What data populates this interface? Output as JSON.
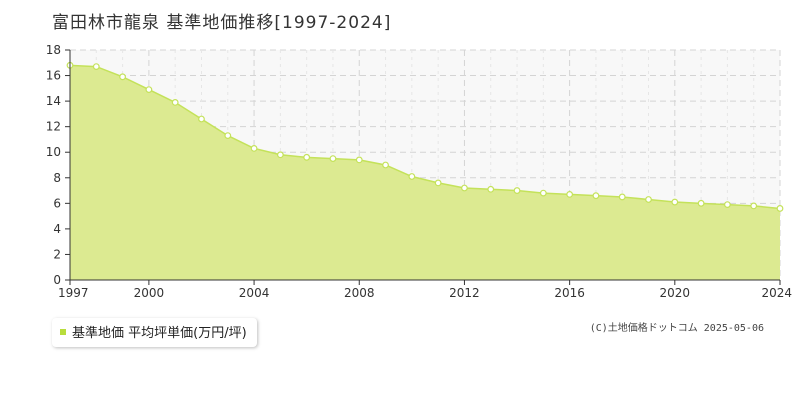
{
  "title": "富田林市龍泉 基準地価推移[1997-2024]",
  "legend": {
    "label": "基準地価 平均坪単価(万円/坪)"
  },
  "copyright": "(C)土地価格ドットコム 2025-05-06",
  "colors": {
    "area_fill": "#dcea91",
    "line": "#c4e25a",
    "legend_swatch": "#b8dd3c",
    "grid": "#d4d4d4",
    "plot_bg": "#f8f8f8"
  },
  "chart_data": {
    "type": "area",
    "title": "富田林市龍泉 基準地価推移[1997-2024]",
    "x": [
      1997,
      1998,
      1999,
      2000,
      2001,
      2002,
      2003,
      2004,
      2005,
      2006,
      2007,
      2008,
      2009,
      2010,
      2011,
      2012,
      2013,
      2014,
      2015,
      2016,
      2017,
      2018,
      2019,
      2020,
      2021,
      2022,
      2023,
      2024
    ],
    "series": [
      {
        "name": "基準地価 平均坪単価(万円/坪)",
        "values": [
          16.8,
          16.7,
          15.9,
          14.9,
          13.9,
          12.6,
          11.3,
          10.3,
          9.8,
          9.6,
          9.5,
          9.4,
          9.0,
          8.1,
          7.6,
          7.2,
          7.1,
          7.0,
          6.8,
          6.7,
          6.6,
          6.5,
          6.3,
          6.1,
          6.0,
          5.9,
          5.8,
          5.6
        ]
      }
    ],
    "xlim": [
      1997,
      2024
    ],
    "ylim": [
      0,
      18
    ],
    "x_ticks": [
      1997,
      2000,
      2004,
      2008,
      2012,
      2016,
      2020,
      2024
    ],
    "y_ticks": [
      0,
      2,
      4,
      6,
      8,
      10,
      12,
      14,
      16,
      18
    ],
    "grid": true,
    "legend_position": "bottom-left"
  }
}
